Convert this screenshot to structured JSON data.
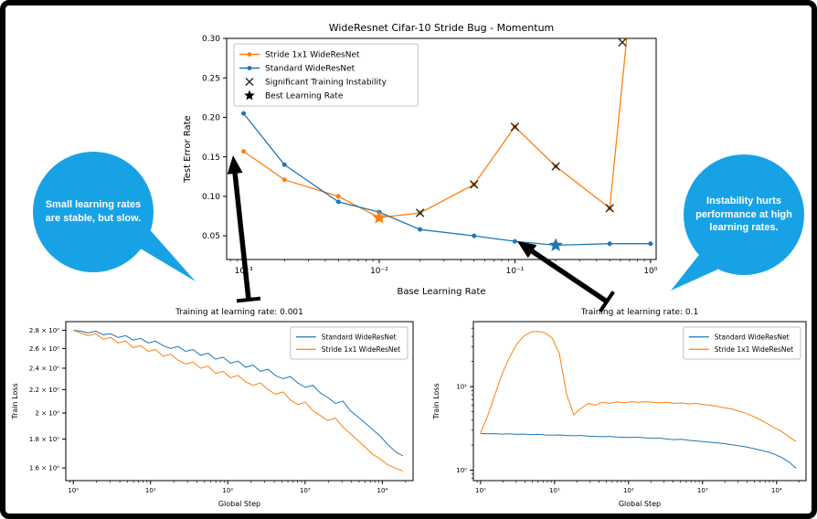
{
  "colors": {
    "stride_orange": "#ff7f0e",
    "standard_blue": "#1f77b4",
    "callout_blue": "#18a2e6",
    "annotation_black": "#000000"
  },
  "callouts": {
    "left": {
      "lines": [
        "Small learning rates",
        "are stable, but slow."
      ]
    },
    "right": {
      "lines": [
        "Instability hurts",
        "performance at high",
        "learning rates."
      ]
    }
  },
  "chart_data": [
    {
      "id": "main",
      "type": "line",
      "title": "WideResnet Cifar-10 Stride Bug - Momentum",
      "xlabel": "Base Learning Rate",
      "ylabel": "Test Error Rate",
      "xscale": "log",
      "yscale": "linear",
      "xlim": [
        0.00075,
        1.1
      ],
      "ylim": [
        0.02,
        0.3
      ],
      "xticks": [
        0.001,
        0.01,
        0.1,
        1
      ],
      "xtick_labels": [
        "10⁻³",
        "10⁻²",
        "10⁻¹",
        "10⁰"
      ],
      "yticks": [
        0.05,
        0.1,
        0.15,
        0.2,
        0.25,
        0.3
      ],
      "ytick_labels": [
        "0.05",
        "0.10",
        "0.15",
        "0.20",
        "0.25",
        "0.30"
      ],
      "legend": {
        "position": "upper-left",
        "entries": [
          {
            "label": "Stride 1x1 WideResNet",
            "type": "line",
            "color": "#ff7f0e"
          },
          {
            "label": "Standard WideResNet",
            "type": "line",
            "color": "#1f77b4"
          },
          {
            "label": "Significant Training Instability",
            "type": "x",
            "color": "#262626"
          },
          {
            "label": "Best Learning Rate",
            "type": "star",
            "color": "#000000"
          }
        ]
      },
      "x": [
        0.001,
        0.002,
        0.005,
        0.01,
        0.02,
        0.05,
        0.1,
        0.2,
        0.5,
        1.0
      ],
      "series": [
        {
          "name": "Stride 1x1 WideResNet",
          "color": "#ff7f0e",
          "marker": "dot",
          "y": [
            0.157,
            0.121,
            0.1,
            0.073,
            0.079,
            0.115,
            0.188,
            0.138,
            0.085,
            0.6
          ]
        },
        {
          "name": "Standard WideResNet",
          "color": "#1f77b4",
          "marker": "dot",
          "y": [
            0.205,
            0.14,
            0.093,
            0.08,
            0.058,
            0.05,
            0.043,
            0.038,
            0.04,
            0.04
          ]
        }
      ],
      "instability_markers": {
        "color": "#262626",
        "points": [
          [
            0.02,
            0.079
          ],
          [
            0.05,
            0.115
          ],
          [
            0.1,
            0.188
          ],
          [
            0.2,
            0.138
          ],
          [
            0.5,
            0.085
          ],
          [
            0.62,
            0.295
          ]
        ]
      },
      "best_markers": [
        {
          "x": 0.01,
          "y": 0.073,
          "color": "#ff7f0e"
        },
        {
          "x": 0.2,
          "y": 0.038,
          "color": "#1f77b4"
        }
      ]
    },
    {
      "id": "lr001",
      "type": "line",
      "title": "Training at learning rate: 0.001",
      "xlabel": "Global Step",
      "ylabel": "Train Loss",
      "xscale": "log",
      "yscale": "log",
      "xlim": [
        0.8,
        25000
      ],
      "ylim": [
        1.52,
        2.9
      ],
      "xticks": [
        1,
        10,
        100,
        1000,
        10000
      ],
      "xtick_labels": [
        "10⁰",
        "10¹",
        "10²",
        "10³",
        "10⁴"
      ],
      "yticks": [
        1.6,
        1.8,
        2.0,
        2.2,
        2.4,
        2.6,
        2.8
      ],
      "ytick_labels": [
        "1.6 × 10⁰",
        "1.8 × 10⁰",
        "2 × 10⁰",
        "2.2 × 10⁰",
        "2.4 × 10⁰",
        "2.6 × 10⁰",
        "2.8 × 10⁰"
      ],
      "legend": {
        "position": "upper-right",
        "entries": [
          {
            "label": "Standard WideResNet",
            "type": "plain",
            "color": "#1f77b4"
          },
          {
            "label": "Stride 1x1 WideResNet",
            "type": "plain",
            "color": "#ff7f0e"
          }
        ]
      },
      "x": [
        1,
        1.25,
        1.56,
        1.95,
        2.44,
        3.05,
        3.81,
        4.77,
        5.96,
        7.45,
        9.31,
        11.6,
        14.6,
        18.2,
        22.7,
        28.4,
        35.5,
        44.4,
        55.5,
        69.4,
        86.7,
        108,
        136,
        170,
        212,
        265,
        331,
        414,
        518,
        647,
        809,
        1011,
        1264,
        1580,
        1975,
        2469,
        3086,
        3858,
        4823,
        6029,
        7537,
        9421,
        11777,
        14722,
        18403
      ],
      "series": [
        {
          "name": "Standard WideResNet",
          "color": "#1f77b4",
          "marker": "none",
          "y": [
            2.8,
            2.79,
            2.77,
            2.79,
            2.75,
            2.76,
            2.72,
            2.74,
            2.69,
            2.71,
            2.66,
            2.68,
            2.63,
            2.6,
            2.62,
            2.57,
            2.59,
            2.53,
            2.55,
            2.49,
            2.51,
            2.45,
            2.47,
            2.41,
            2.43,
            2.37,
            2.39,
            2.33,
            2.3,
            2.32,
            2.26,
            2.22,
            2.24,
            2.17,
            2.13,
            2.08,
            2.1,
            2.02,
            1.97,
            1.92,
            1.87,
            1.82,
            1.76,
            1.71,
            1.68
          ]
        },
        {
          "name": "Stride 1x1 WideResNet",
          "color": "#ff7f0e",
          "marker": "none",
          "y": [
            2.8,
            2.77,
            2.74,
            2.76,
            2.7,
            2.72,
            2.66,
            2.68,
            2.61,
            2.63,
            2.57,
            2.59,
            2.52,
            2.54,
            2.48,
            2.44,
            2.46,
            2.4,
            2.42,
            2.35,
            2.37,
            2.31,
            2.33,
            2.27,
            2.24,
            2.26,
            2.2,
            2.16,
            2.18,
            2.11,
            2.07,
            2.09,
            2.02,
            1.98,
            1.94,
            1.96,
            1.89,
            1.84,
            1.79,
            1.74,
            1.69,
            1.66,
            1.62,
            1.6,
            1.58
          ]
        }
      ]
    },
    {
      "id": "lr01",
      "type": "line",
      "title": "Training at learning rate: 0.1",
      "xlabel": "Global Step",
      "ylabel": "Train Loss",
      "xscale": "log",
      "yscale": "log",
      "xlim": [
        0.8,
        25000
      ],
      "ylim": [
        0.75,
        60
      ],
      "xticks": [
        1,
        10,
        100,
        1000,
        10000
      ],
      "xtick_labels": [
        "10⁰",
        "10¹",
        "10²",
        "10³",
        "10⁴"
      ],
      "yticks": [
        1,
        10
      ],
      "ytick_labels": [
        "10⁰",
        "10¹"
      ],
      "legend": {
        "position": "upper-right",
        "entries": [
          {
            "label": "Standard WideResNet",
            "type": "plain",
            "color": "#1f77b4"
          },
          {
            "label": "Stride 1x1 WideResNet",
            "type": "plain",
            "color": "#ff7f0e"
          }
        ]
      },
      "x": [
        1,
        1.25,
        1.56,
        1.95,
        2.44,
        3.05,
        3.81,
        4.77,
        5.96,
        7.45,
        9.31,
        11.6,
        14.6,
        18.2,
        22.7,
        28.4,
        35.5,
        44.4,
        55.5,
        69.4,
        86.7,
        108,
        136,
        170,
        212,
        265,
        331,
        414,
        518,
        647,
        809,
        1011,
        1264,
        1580,
        1975,
        2469,
        3086,
        3858,
        4823,
        6029,
        7537,
        9421,
        11777,
        14722,
        18403
      ],
      "series": [
        {
          "name": "Standard WideResNet",
          "color": "#1f77b4",
          "marker": "none",
          "y": [
            2.75,
            2.73,
            2.74,
            2.7,
            2.72,
            2.68,
            2.7,
            2.66,
            2.68,
            2.64,
            2.62,
            2.64,
            2.6,
            2.58,
            2.6,
            2.56,
            2.54,
            2.52,
            2.54,
            2.5,
            2.48,
            2.46,
            2.48,
            2.44,
            2.4,
            2.42,
            2.36,
            2.32,
            2.34,
            2.28,
            2.24,
            2.2,
            2.16,
            2.12,
            2.08,
            2.02,
            1.96,
            1.9,
            1.82,
            1.74,
            1.66,
            1.55,
            1.42,
            1.25,
            1.05
          ]
        },
        {
          "name": "Stride 1x1 WideResNet",
          "color": "#ff7f0e",
          "marker": "none",
          "y": [
            2.8,
            4.5,
            8,
            14,
            22,
            32,
            40,
            45,
            46,
            44,
            38,
            25,
            8,
            4.6,
            5.5,
            6.3,
            6.0,
            6.5,
            6.3,
            6.6,
            6.4,
            6.6,
            6.5,
            6.6,
            6.5,
            6.4,
            6.5,
            6.3,
            6.4,
            6.2,
            6.3,
            6.1,
            6.0,
            5.8,
            5.6,
            5.4,
            5.1,
            4.8,
            4.4,
            4.0,
            3.6,
            3.2,
            2.9,
            2.5,
            2.2
          ]
        }
      ]
    }
  ]
}
